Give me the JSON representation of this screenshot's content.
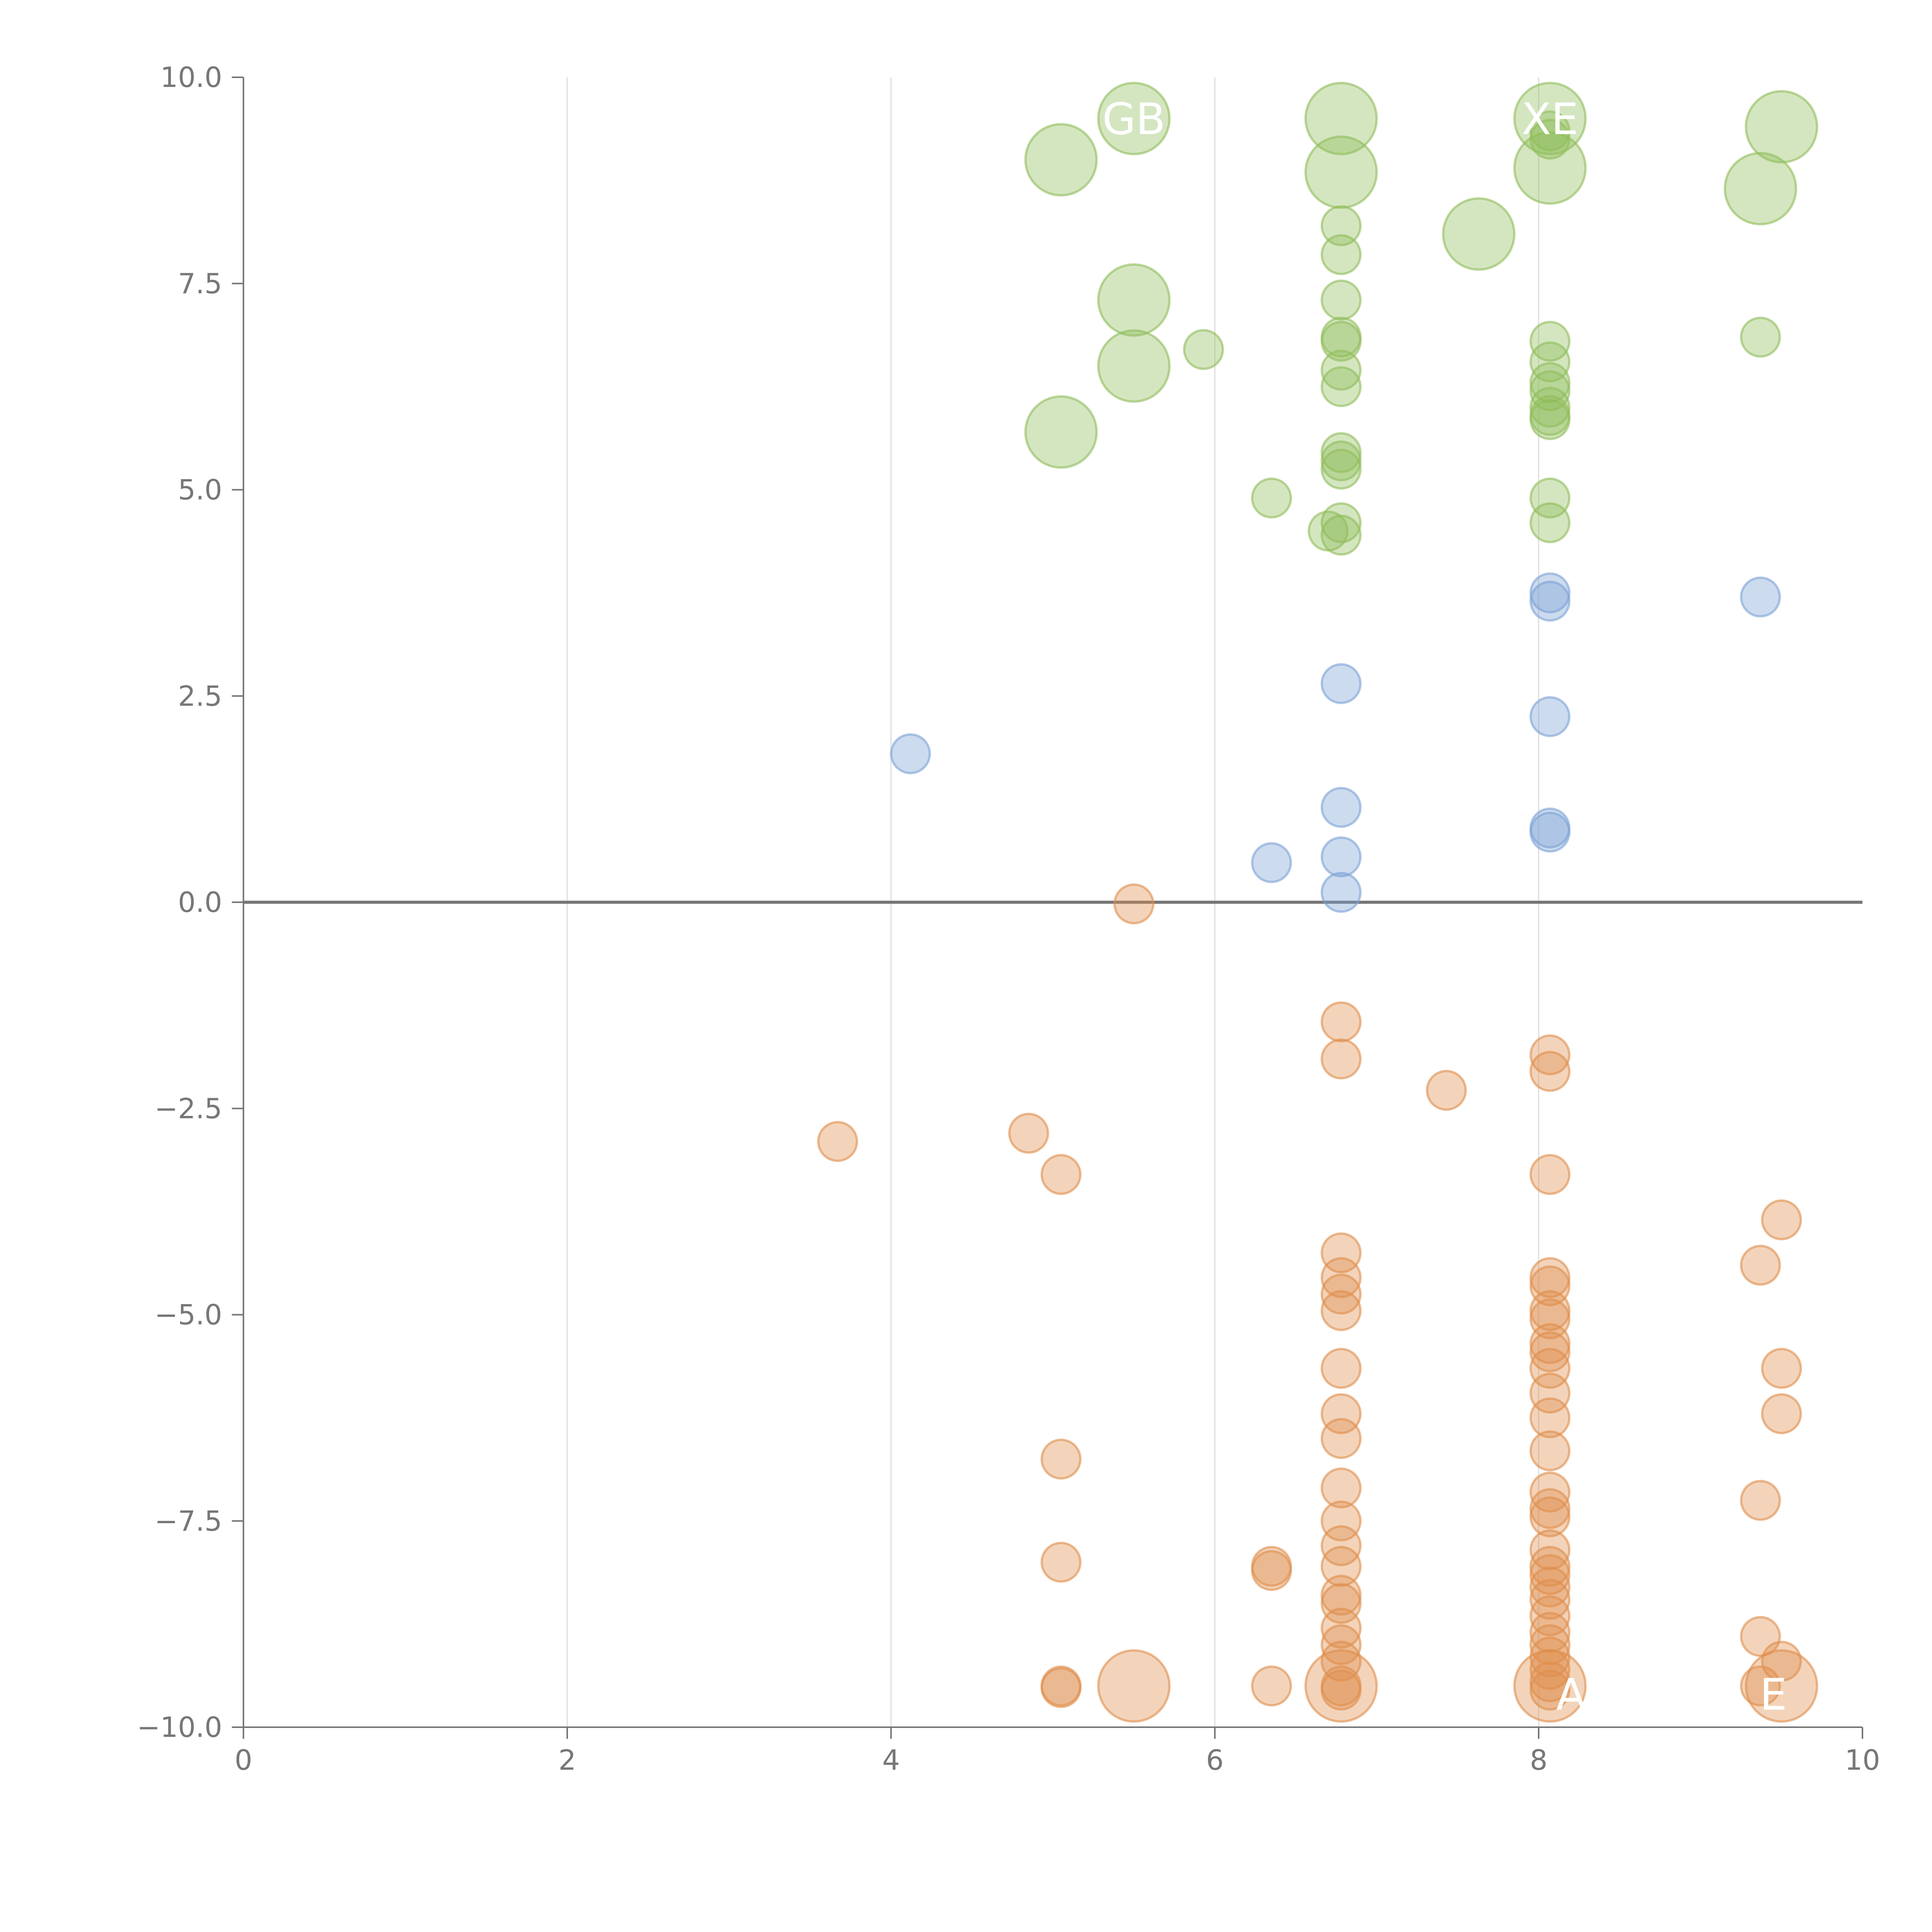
{
  "chart_data": {
    "type": "scatter",
    "title": "",
    "xlabel": "",
    "ylabel": "",
    "xlim": [
      0,
      10
    ],
    "ylim": [
      -10,
      10
    ],
    "x_ticks": [
      "0",
      "2",
      "4",
      "6",
      "8",
      "10"
    ],
    "x_tick_values": [
      0,
      2,
      4,
      6,
      8,
      10
    ],
    "y_ticks": [
      "10.0",
      "7.5",
      "5.0",
      "2.5",
      "0.0",
      "−2.5",
      "−5.0",
      "−7.5",
      "−10.0"
    ],
    "y_tick_values": [
      10,
      7.5,
      5,
      2.5,
      0,
      -2.5,
      -5,
      -7.5,
      -10
    ],
    "grid": {
      "x": true,
      "y": false
    },
    "zero_line": true,
    "legend": "none",
    "series": [
      {
        "color": "#8fbc5a",
        "points": [
          {
            "x": 5.5,
            "y": 9.5,
            "r": "large"
          },
          {
            "x": 5.05,
            "y": 9.0,
            "r": "large"
          },
          {
            "x": 6.78,
            "y": 9.5,
            "r": "large"
          },
          {
            "x": 6.78,
            "y": 8.85,
            "r": "large"
          },
          {
            "x": 8.07,
            "y": 9.5,
            "r": "large"
          },
          {
            "x": 8.07,
            "y": 8.9,
            "r": "large"
          },
          {
            "x": 9.5,
            "y": 9.4,
            "r": "large"
          },
          {
            "x": 9.37,
            "y": 8.65,
            "r": "large"
          },
          {
            "x": 7.63,
            "y": 8.1,
            "r": "large"
          },
          {
            "x": 5.5,
            "y": 7.3,
            "r": "large"
          },
          {
            "x": 5.5,
            "y": 6.5,
            "r": "large"
          },
          {
            "x": 5.05,
            "y": 5.7,
            "r": "large"
          },
          {
            "x": 8.07,
            "y": 9.35,
            "r": "small"
          },
          {
            "x": 8.07,
            "y": 9.25,
            "r": "small"
          },
          {
            "x": 6.78,
            "y": 8.2,
            "r": "small"
          },
          {
            "x": 6.78,
            "y": 7.85,
            "r": "small"
          },
          {
            "x": 6.78,
            "y": 7.3,
            "r": "small"
          },
          {
            "x": 6.78,
            "y": 6.85,
            "r": "small"
          },
          {
            "x": 6.78,
            "y": 6.8,
            "r": "small"
          },
          {
            "x": 6.78,
            "y": 6.45,
            "r": "small"
          },
          {
            "x": 6.78,
            "y": 6.25,
            "r": "small"
          },
          {
            "x": 6.78,
            "y": 5.45,
            "r": "small"
          },
          {
            "x": 6.78,
            "y": 5.35,
            "r": "small"
          },
          {
            "x": 6.78,
            "y": 5.25,
            "r": "small"
          },
          {
            "x": 6.78,
            "y": 4.6,
            "r": "small"
          },
          {
            "x": 6.78,
            "y": 4.45,
            "r": "small"
          },
          {
            "x": 6.7,
            "y": 4.5,
            "r": "small"
          },
          {
            "x": 5.93,
            "y": 6.7,
            "r": "small"
          },
          {
            "x": 6.35,
            "y": 4.9,
            "r": "small"
          },
          {
            "x": 8.07,
            "y": 6.8,
            "r": "small"
          },
          {
            "x": 8.07,
            "y": 6.55,
            "r": "small"
          },
          {
            "x": 8.07,
            "y": 6.3,
            "r": "small"
          },
          {
            "x": 8.07,
            "y": 6.2,
            "r": "small"
          },
          {
            "x": 8.07,
            "y": 6.0,
            "r": "small"
          },
          {
            "x": 8.07,
            "y": 5.9,
            "r": "small"
          },
          {
            "x": 8.07,
            "y": 5.85,
            "r": "small"
          },
          {
            "x": 8.07,
            "y": 4.9,
            "r": "small"
          },
          {
            "x": 8.07,
            "y": 4.6,
            "r": "small"
          },
          {
            "x": 9.37,
            "y": 6.85,
            "r": "small"
          }
        ]
      },
      {
        "color": "#7ba1d6",
        "points": [
          {
            "x": 4.12,
            "y": 1.8,
            "r": "small"
          },
          {
            "x": 6.35,
            "y": 0.48,
            "r": "small"
          },
          {
            "x": 6.78,
            "y": 2.65,
            "r": "small"
          },
          {
            "x": 6.78,
            "y": 1.15,
            "r": "small"
          },
          {
            "x": 6.78,
            "y": 0.55,
            "r": "small"
          },
          {
            "x": 6.78,
            "y": 0.12,
            "r": "small"
          },
          {
            "x": 8.07,
            "y": 3.75,
            "r": "small"
          },
          {
            "x": 8.07,
            "y": 3.65,
            "r": "small"
          },
          {
            "x": 8.07,
            "y": 2.25,
            "r": "small"
          },
          {
            "x": 8.07,
            "y": 0.9,
            "r": "small"
          },
          {
            "x": 8.07,
            "y": 0.85,
            "r": "small"
          },
          {
            "x": 9.37,
            "y": 3.7,
            "r": "small"
          }
        ]
      },
      {
        "color": "#e08e4b",
        "points": [
          {
            "x": 5.5,
            "y": -0.02,
            "r": "small"
          },
          {
            "x": 3.67,
            "y": -2.9,
            "r": "small"
          },
          {
            "x": 4.85,
            "y": -2.8,
            "r": "small"
          },
          {
            "x": 5.05,
            "y": -3.3,
            "r": "small"
          },
          {
            "x": 5.05,
            "y": -6.75,
            "r": "small"
          },
          {
            "x": 5.05,
            "y": -8.0,
            "r": "small"
          },
          {
            "x": 5.05,
            "y": -9.5,
            "r": "small"
          },
          {
            "x": 5.05,
            "y": -9.52,
            "r": "small"
          },
          {
            "x": 5.5,
            "y": -9.5,
            "r": "large"
          },
          {
            "x": 6.35,
            "y": -8.05,
            "r": "small"
          },
          {
            "x": 6.35,
            "y": -8.1,
            "r": "small"
          },
          {
            "x": 6.35,
            "y": -9.5,
            "r": "small"
          },
          {
            "x": 6.78,
            "y": -1.45,
            "r": "small"
          },
          {
            "x": 6.78,
            "y": -1.9,
            "r": "small"
          },
          {
            "x": 6.78,
            "y": -4.25,
            "r": "small"
          },
          {
            "x": 6.78,
            "y": -4.55,
            "r": "small"
          },
          {
            "x": 6.78,
            "y": -4.75,
            "r": "small"
          },
          {
            "x": 6.78,
            "y": -4.95,
            "r": "small"
          },
          {
            "x": 6.78,
            "y": -5.65,
            "r": "small"
          },
          {
            "x": 6.78,
            "y": -6.2,
            "r": "small"
          },
          {
            "x": 6.78,
            "y": -6.5,
            "r": "small"
          },
          {
            "x": 6.78,
            "y": -7.1,
            "r": "small"
          },
          {
            "x": 6.78,
            "y": -7.5,
            "r": "small"
          },
          {
            "x": 6.78,
            "y": -7.8,
            "r": "small"
          },
          {
            "x": 6.78,
            "y": -8.05,
            "r": "small"
          },
          {
            "x": 6.78,
            "y": -8.4,
            "r": "small"
          },
          {
            "x": 6.78,
            "y": -8.5,
            "r": "small"
          },
          {
            "x": 6.78,
            "y": -8.8,
            "r": "small"
          },
          {
            "x": 6.78,
            "y": -9.0,
            "r": "small"
          },
          {
            "x": 6.78,
            "y": -9.2,
            "r": "small"
          },
          {
            "x": 6.78,
            "y": -9.5,
            "r": "small"
          },
          {
            "x": 6.78,
            "y": -9.55,
            "r": "small"
          },
          {
            "x": 6.78,
            "y": -9.5,
            "r": "large"
          },
          {
            "x": 7.43,
            "y": -2.28,
            "r": "small"
          },
          {
            "x": 8.07,
            "y": -1.85,
            "r": "small"
          },
          {
            "x": 8.07,
            "y": -2.05,
            "r": "small"
          },
          {
            "x": 8.07,
            "y": -3.3,
            "r": "small"
          },
          {
            "x": 8.07,
            "y": -4.55,
            "r": "small"
          },
          {
            "x": 8.07,
            "y": -4.65,
            "r": "small"
          },
          {
            "x": 8.07,
            "y": -4.95,
            "r": "small"
          },
          {
            "x": 8.07,
            "y": -5.05,
            "r": "small"
          },
          {
            "x": 8.07,
            "y": -5.35,
            "r": "small"
          },
          {
            "x": 8.07,
            "y": -5.45,
            "r": "small"
          },
          {
            "x": 8.07,
            "y": -5.65,
            "r": "small"
          },
          {
            "x": 8.07,
            "y": -5.95,
            "r": "small"
          },
          {
            "x": 8.07,
            "y": -6.25,
            "r": "small"
          },
          {
            "x": 8.07,
            "y": -6.65,
            "r": "small"
          },
          {
            "x": 8.07,
            "y": -7.15,
            "r": "small"
          },
          {
            "x": 8.07,
            "y": -7.35,
            "r": "small"
          },
          {
            "x": 8.07,
            "y": -7.45,
            "r": "small"
          },
          {
            "x": 8.07,
            "y": -7.85,
            "r": "small"
          },
          {
            "x": 8.07,
            "y": -8.05,
            "r": "small"
          },
          {
            "x": 8.07,
            "y": -8.15,
            "r": "small"
          },
          {
            "x": 8.07,
            "y": -8.3,
            "r": "small"
          },
          {
            "x": 8.07,
            "y": -8.45,
            "r": "small"
          },
          {
            "x": 8.07,
            "y": -8.65,
            "r": "small"
          },
          {
            "x": 8.07,
            "y": -8.85,
            "r": "small"
          },
          {
            "x": 8.07,
            "y": -9.0,
            "r": "small"
          },
          {
            "x": 8.07,
            "y": -9.15,
            "r": "small"
          },
          {
            "x": 8.07,
            "y": -9.3,
            "r": "small"
          },
          {
            "x": 8.07,
            "y": -9.45,
            "r": "small"
          },
          {
            "x": 8.07,
            "y": -9.55,
            "r": "small"
          },
          {
            "x": 8.07,
            "y": -9.5,
            "r": "large"
          },
          {
            "x": 9.37,
            "y": -4.4,
            "r": "small"
          },
          {
            "x": 9.5,
            "y": -3.85,
            "r": "small"
          },
          {
            "x": 9.5,
            "y": -5.65,
            "r": "small"
          },
          {
            "x": 9.5,
            "y": -6.2,
            "r": "small"
          },
          {
            "x": 9.37,
            "y": -7.25,
            "r": "small"
          },
          {
            "x": 9.37,
            "y": -8.9,
            "r": "small"
          },
          {
            "x": 9.5,
            "y": -9.2,
            "r": "small"
          },
          {
            "x": 9.37,
            "y": -9.5,
            "r": "small"
          },
          {
            "x": 9.5,
            "y": -9.5,
            "r": "large"
          }
        ]
      }
    ],
    "point_labels": [
      {
        "text": "GB",
        "x": 5.5,
        "y": 9.5
      },
      {
        "text": "XE",
        "x": 8.07,
        "y": 9.5
      },
      {
        "text": "A",
        "x": 8.2,
        "y": -9.6
      },
      {
        "text": "E",
        "x": 9.45,
        "y": -9.6
      }
    ]
  }
}
